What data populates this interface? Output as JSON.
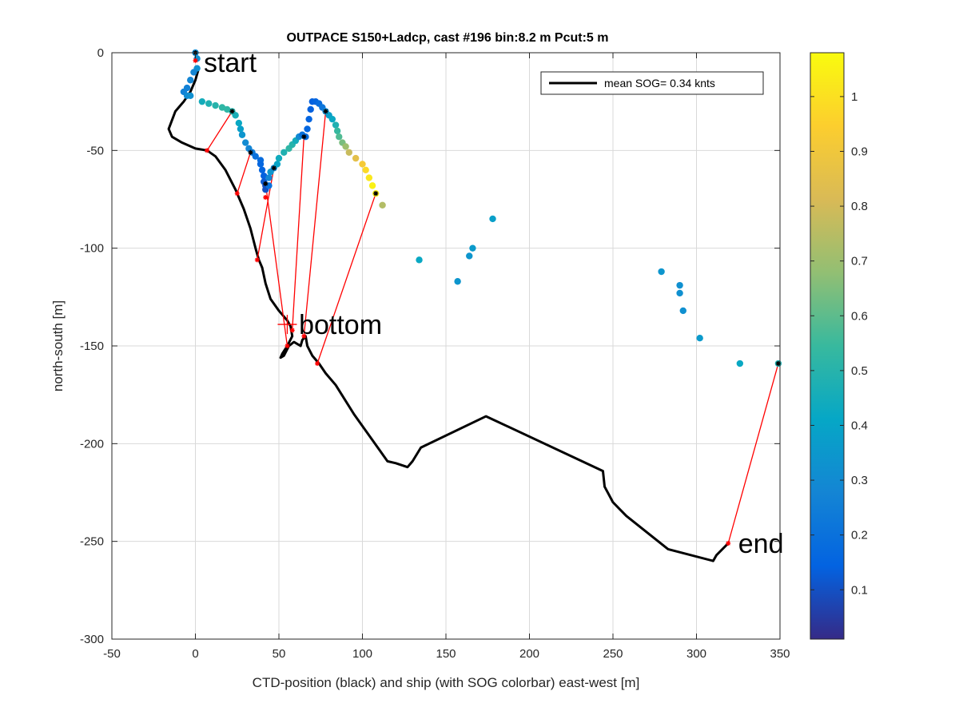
{
  "chart_data": {
    "type": "scatter",
    "title": "OUTPACE S150+Ladcp, cast #196 bin:8.2 m  Pcut:5 m",
    "xlabel": "CTD-position (black) and ship (with SOG colorbar) east-west [m]",
    "ylabel": "north-south [m]",
    "xlim": [
      -50,
      350
    ],
    "ylim": [
      -300,
      0
    ],
    "xticks": [
      -50,
      0,
      50,
      100,
      150,
      200,
      250,
      300,
      350
    ],
    "yticks": [
      -300,
      -250,
      -200,
      -150,
      -100,
      -50,
      0
    ],
    "grid": true,
    "legend": {
      "label": "mean SOG=  0.34 knts",
      "placement": "top-right"
    },
    "colorbar": {
      "min": 0.01,
      "max": 1.08,
      "ticks": [
        0.1,
        0.2,
        0.3,
        0.4,
        0.5,
        0.6,
        0.7,
        0.8,
        0.9,
        1
      ]
    },
    "annotations": [
      {
        "text": "start",
        "x": 5,
        "y": -5
      },
      {
        "text": "bottom",
        "x": 62,
        "y": -139
      },
      {
        "text": "end",
        "x": 325,
        "y": -251
      }
    ],
    "ctd_track": [
      [
        2,
        -8
      ],
      [
        0,
        -14
      ],
      [
        -3,
        -20
      ],
      [
        -7,
        -25
      ],
      [
        -12,
        -30
      ],
      [
        -16,
        -39
      ],
      [
        -14,
        -43
      ],
      [
        -8,
        -46
      ],
      [
        0,
        -49
      ],
      [
        7,
        -50
      ],
      [
        12,
        -53
      ],
      [
        18,
        -60
      ],
      [
        24,
        -70
      ],
      [
        29,
        -80
      ],
      [
        33,
        -90
      ],
      [
        36,
        -100
      ],
      [
        38,
        -106
      ],
      [
        40,
        -110
      ],
      [
        42,
        -118
      ],
      [
        45,
        -126
      ],
      [
        50,
        -132
      ],
      [
        55,
        -137
      ],
      [
        57,
        -140
      ],
      [
        58,
        -145
      ],
      [
        55,
        -150
      ],
      [
        52,
        -154
      ],
      [
        51,
        -156
      ],
      [
        53,
        -155
      ],
      [
        56,
        -150
      ],
      [
        59,
        -148
      ],
      [
        63,
        -150
      ],
      [
        64,
        -147
      ],
      [
        66,
        -145
      ],
      [
        67,
        -150
      ],
      [
        70,
        -155
      ],
      [
        74,
        -159
      ],
      [
        78,
        -164
      ],
      [
        84,
        -170
      ],
      [
        95,
        -185
      ],
      [
        110,
        -203
      ],
      [
        115,
        -209
      ],
      [
        120,
        -210
      ],
      [
        127,
        -212
      ],
      [
        130,
        -209
      ],
      [
        135,
        -202
      ],
      [
        174,
        -186
      ],
      [
        244,
        -214
      ],
      [
        245,
        -222
      ],
      [
        250,
        -230
      ],
      [
        258,
        -237
      ],
      [
        283,
        -254
      ],
      [
        310,
        -260
      ],
      [
        312,
        -257
      ],
      [
        319,
        -251
      ]
    ],
    "ship_track": [
      {
        "x": 0,
        "y": 0,
        "sog": 0.3
      },
      {
        "x": 1,
        "y": -3,
        "sog": 0.32
      },
      {
        "x": 1,
        "y": -8,
        "sog": 0.32
      },
      {
        "x": -1,
        "y": -10,
        "sog": 0.28
      },
      {
        "x": -3,
        "y": -14,
        "sog": 0.28
      },
      {
        "x": -5,
        "y": -18,
        "sog": 0.26
      },
      {
        "x": -7,
        "y": -20,
        "sog": 0.26
      },
      {
        "x": -5,
        "y": -22,
        "sog": 0.3
      },
      {
        "x": -3,
        "y": -22,
        "sog": 0.32
      },
      {
        "x": 4,
        "y": -25,
        "sog": 0.45
      },
      {
        "x": 8,
        "y": -26,
        "sog": 0.48
      },
      {
        "x": 12,
        "y": -27,
        "sog": 0.5
      },
      {
        "x": 16,
        "y": -28,
        "sog": 0.52
      },
      {
        "x": 19,
        "y": -29,
        "sog": 0.52
      },
      {
        "x": 22,
        "y": -30,
        "sog": 0.5
      },
      {
        "x": 24,
        "y": -32,
        "sog": 0.46
      },
      {
        "x": 26,
        "y": -36,
        "sog": 0.42
      },
      {
        "x": 27,
        "y": -39,
        "sog": 0.38
      },
      {
        "x": 28,
        "y": -42,
        "sog": 0.34
      },
      {
        "x": 30,
        "y": -46,
        "sog": 0.3
      },
      {
        "x": 32,
        "y": -49,
        "sog": 0.28
      },
      {
        "x": 34,
        "y": -51,
        "sog": 0.24
      },
      {
        "x": 36,
        "y": -53,
        "sog": 0.2
      },
      {
        "x": 39,
        "y": -55,
        "sog": 0.18
      },
      {
        "x": 39,
        "y": -57,
        "sog": 0.16
      },
      {
        "x": 40,
        "y": -60,
        "sog": 0.15
      },
      {
        "x": 41,
        "y": -63,
        "sog": 0.14
      },
      {
        "x": 41,
        "y": -66,
        "sog": 0.12
      },
      {
        "x": 42,
        "y": -68,
        "sog": 0.1
      },
      {
        "x": 42,
        "y": -70,
        "sog": 0.1
      },
      {
        "x": 44,
        "y": -68,
        "sog": 0.2
      },
      {
        "x": 44,
        "y": -64,
        "sog": 0.28
      },
      {
        "x": 45,
        "y": -61,
        "sog": 0.34
      },
      {
        "x": 47,
        "y": -59,
        "sog": 0.3
      },
      {
        "x": 49,
        "y": -57,
        "sog": 0.4
      },
      {
        "x": 50,
        "y": -54,
        "sog": 0.44
      },
      {
        "x": 53,
        "y": -51,
        "sog": 0.48
      },
      {
        "x": 56,
        "y": -49,
        "sog": 0.52
      },
      {
        "x": 58,
        "y": -47,
        "sog": 0.5
      },
      {
        "x": 60,
        "y": -45,
        "sog": 0.45
      },
      {
        "x": 62,
        "y": -43,
        "sog": 0.3
      },
      {
        "x": 64,
        "y": -42,
        "sog": 0.2
      },
      {
        "x": 66,
        "y": -43,
        "sog": 0.18
      },
      {
        "x": 67,
        "y": -39,
        "sog": 0.16
      },
      {
        "x": 68,
        "y": -34,
        "sog": 0.15
      },
      {
        "x": 69,
        "y": -29,
        "sog": 0.14
      },
      {
        "x": 70,
        "y": -25,
        "sog": 0.14
      },
      {
        "x": 72,
        "y": -25,
        "sog": 0.15
      },
      {
        "x": 74,
        "y": -26,
        "sog": 0.18
      },
      {
        "x": 76,
        "y": -28,
        "sog": 0.22
      },
      {
        "x": 78,
        "y": -30,
        "sog": 0.3
      },
      {
        "x": 80,
        "y": -32,
        "sog": 0.38
      },
      {
        "x": 82,
        "y": -34,
        "sog": 0.42
      },
      {
        "x": 84,
        "y": -37,
        "sog": 0.48
      },
      {
        "x": 85,
        "y": -40,
        "sog": 0.54
      },
      {
        "x": 86,
        "y": -43,
        "sog": 0.58
      },
      {
        "x": 88,
        "y": -46,
        "sog": 0.64
      },
      {
        "x": 90,
        "y": -48,
        "sog": 0.7
      },
      {
        "x": 92,
        "y": -51,
        "sog": 0.78
      },
      {
        "x": 96,
        "y": -54,
        "sog": 0.85
      },
      {
        "x": 100,
        "y": -57,
        "sog": 0.92
      },
      {
        "x": 102,
        "y": -60,
        "sog": 0.98
      },
      {
        "x": 104,
        "y": -64,
        "sog": 1.02
      },
      {
        "x": 106,
        "y": -68,
        "sog": 1.05
      },
      {
        "x": 108,
        "y": -72,
        "sog": 1.04
      },
      {
        "x": 112,
        "y": -78,
        "sog": 0.74
      },
      {
        "x": 134,
        "y": -106,
        "sog": 0.42
      },
      {
        "x": 157,
        "y": -117,
        "sog": 0.34
      },
      {
        "x": 164,
        "y": -104,
        "sog": 0.34
      },
      {
        "x": 166,
        "y": -100,
        "sog": 0.36
      },
      {
        "x": 178,
        "y": -85,
        "sog": 0.38
      },
      {
        "x": 279,
        "y": -112,
        "sog": 0.34
      },
      {
        "x": 290,
        "y": -119,
        "sog": 0.32
      },
      {
        "x": 290,
        "y": -123,
        "sog": 0.32
      },
      {
        "x": 292,
        "y": -132,
        "sog": 0.32
      },
      {
        "x": 302,
        "y": -146,
        "sog": 0.36
      },
      {
        "x": 326,
        "y": -159,
        "sog": 0.42
      },
      {
        "x": 349,
        "y": -159,
        "sog": 0.48
      }
    ],
    "ship_markers": [
      [
        0,
        0
      ],
      [
        22,
        -30
      ],
      [
        33,
        -51
      ],
      [
        42,
        -67
      ],
      [
        47,
        -59
      ],
      [
        65,
        -43
      ],
      [
        78,
        -30
      ],
      [
        108,
        -72
      ],
      [
        349,
        -159
      ]
    ],
    "ctd_markers": [
      [
        0,
        -4
      ],
      [
        7,
        -50
      ],
      [
        25,
        -72
      ],
      [
        37,
        -106
      ],
      [
        42,
        -74
      ],
      [
        55,
        -150
      ],
      [
        58,
        -142
      ],
      [
        65,
        -145
      ],
      [
        73,
        -159
      ],
      [
        319,
        -251
      ]
    ],
    "connections": [
      [
        [
          0,
          0
        ],
        [
          0,
          -4
        ]
      ],
      [
        [
          22,
          -30
        ],
        [
          7,
          -50
        ]
      ],
      [
        [
          33,
          -51
        ],
        [
          25,
          -72
        ]
      ],
      [
        [
          47,
          -59
        ],
        [
          37,
          -106
        ]
      ],
      [
        [
          42,
          -67
        ],
        [
          55,
          -150
        ]
      ],
      [
        [
          65,
          -43
        ],
        [
          58,
          -142
        ]
      ],
      [
        [
          78,
          -30
        ],
        [
          65,
          -145
        ]
      ],
      [
        [
          108,
          -72
        ],
        [
          73,
          -159
        ]
      ],
      [
        [
          349,
          -159
        ],
        [
          319,
          -251
        ]
      ]
    ],
    "bottom_cross": [
      55,
      -139
    ]
  }
}
